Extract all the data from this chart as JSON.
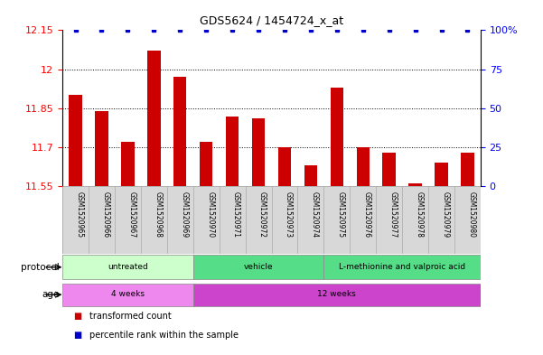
{
  "title": "GDS5624 / 1454724_x_at",
  "samples": [
    "GSM1520965",
    "GSM1520966",
    "GSM1520967",
    "GSM1520968",
    "GSM1520969",
    "GSM1520970",
    "GSM1520971",
    "GSM1520972",
    "GSM1520973",
    "GSM1520974",
    "GSM1520975",
    "GSM1520976",
    "GSM1520977",
    "GSM1520978",
    "GSM1520979",
    "GSM1520980"
  ],
  "transformed_count": [
    11.9,
    11.84,
    11.72,
    12.07,
    11.97,
    11.72,
    11.82,
    11.81,
    11.7,
    11.63,
    11.93,
    11.7,
    11.68,
    11.56,
    11.64,
    11.68
  ],
  "percentile_rank": [
    100,
    100,
    100,
    100,
    100,
    100,
    100,
    100,
    100,
    100,
    100,
    100,
    100,
    100,
    100,
    100
  ],
  "ylim": [
    11.55,
    12.15
  ],
  "yticks": [
    11.55,
    11.7,
    11.85,
    12.0,
    12.15
  ],
  "ytick_labels": [
    "11.55",
    "11.7",
    "11.85",
    "12",
    "12.15"
  ],
  "right_yticks": [
    0,
    25,
    50,
    75,
    100
  ],
  "right_ytick_labels": [
    "0",
    "25",
    "50",
    "75",
    "100%"
  ],
  "bar_color": "#cc0000",
  "dot_color": "#0000cc",
  "protocol_data": [
    {
      "label": "untreated",
      "start": 0,
      "end": 4,
      "color": "#ccffcc"
    },
    {
      "label": "vehicle",
      "start": 5,
      "end": 9,
      "color": "#55dd88"
    },
    {
      "label": "L-methionine and valproic acid",
      "start": 10,
      "end": 15,
      "color": "#55dd88"
    }
  ],
  "age_data": [
    {
      "label": "4 weeks",
      "start": 0,
      "end": 4,
      "color": "#ee88ee"
    },
    {
      "label": "12 weeks",
      "start": 5,
      "end": 15,
      "color": "#cc44cc"
    }
  ],
  "legend_labels": [
    "transformed count",
    "percentile rank within the sample"
  ],
  "legend_colors": [
    "#cc0000",
    "#0000cc"
  ]
}
